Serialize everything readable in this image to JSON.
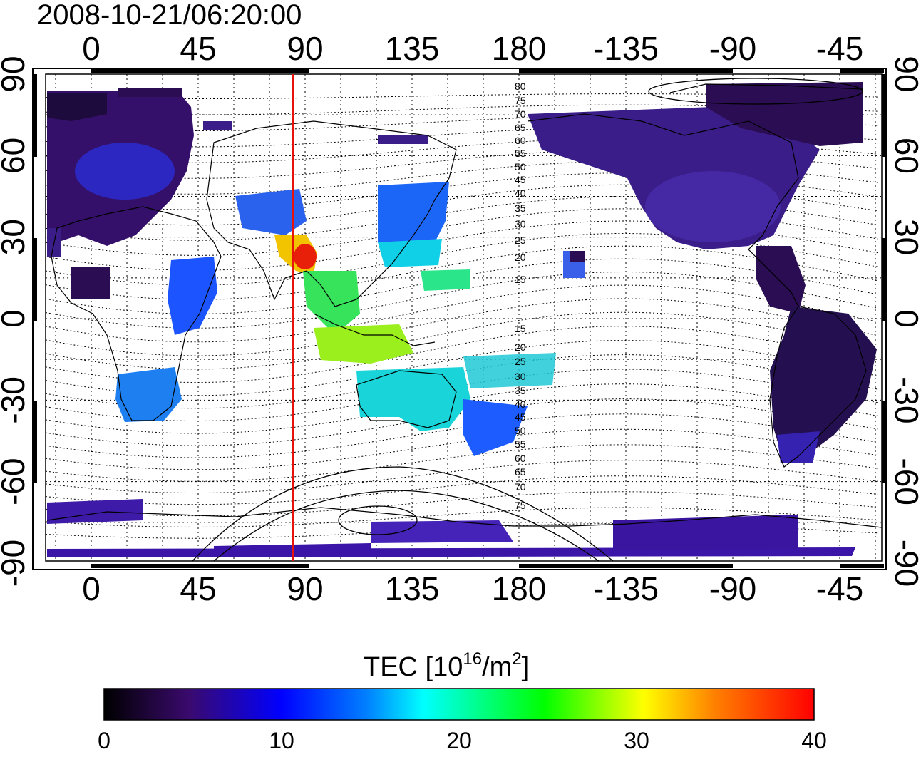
{
  "header": {
    "timestamp": "2008-10-21/06:20:00"
  },
  "map": {
    "top_lon_labels": [
      "0",
      "45",
      "90",
      "135",
      "180",
      "-135",
      "-90",
      "-45"
    ],
    "bottom_lon_labels": [
      "0",
      "45",
      "90",
      "135",
      "180",
      "-135",
      "-90",
      "-45"
    ],
    "left_lat_labels": [
      "90",
      "60",
      "30",
      "0",
      "-30",
      "-60",
      "-90"
    ],
    "right_lat_labels": [
      "90",
      "60",
      "30",
      "0",
      "-30",
      "-60",
      "-90"
    ],
    "marker_line_longitude": 85,
    "marker_line_color": "#e8120c",
    "magnetic_lat_labels_north": [
      "80",
      "75",
      "70",
      "65",
      "60",
      "55",
      "50",
      "45",
      "40",
      "35",
      "30",
      "25",
      "20",
      "15"
    ],
    "magnetic_lat_labels_south": [
      "15",
      "20",
      "25",
      "30",
      "35",
      "40",
      "45",
      "50",
      "55",
      "60",
      "65",
      "70",
      "75"
    ]
  },
  "colorbar": {
    "title_prefix": "TEC  [10",
    "title_exp": "16",
    "title_mid": "/m",
    "title_exp2": "2",
    "title_suffix": "]",
    "ticks": [
      "0",
      "10",
      "20",
      "30",
      "40"
    ],
    "range": [
      0,
      40
    ],
    "colors": [
      "#000000",
      "#3a0a6e",
      "#0000ff",
      "#00ffff",
      "#00ff00",
      "#ffff00",
      "#ff8000",
      "#ff0000"
    ]
  }
}
